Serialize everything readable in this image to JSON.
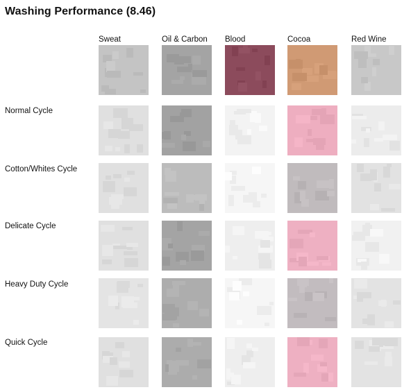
{
  "title": "Washing Performance (8.46)",
  "chart_data": {
    "type": "table",
    "title": "Washing Performance (8.46)",
    "columns": [
      "Sweat",
      "Oil & Carbon",
      "Blood",
      "Cocoa",
      "Red Wine"
    ],
    "rows": [
      "",
      "Normal Cycle",
      "Cotton/Whites Cycle",
      "Delicate Cycle",
      "Heavy Duty Cycle",
      "Quick Cycle"
    ],
    "swatch_colors": [
      [
        "#c4c4c4",
        "#a4a4a4",
        "#8c4b5c",
        "#d09a74",
        "#c8c8c8"
      ],
      [
        "#e0e0e0",
        "#a2a2a2",
        "#f3f3f3",
        "#eeaec0",
        "#ececec"
      ],
      [
        "#e0e0e0",
        "#bcbcbc",
        "#f6f6f6",
        "#c0bbbd",
        "#e2e2e2"
      ],
      [
        "#e0e0e0",
        "#a4a4a4",
        "#eeeeee",
        "#eeb0c2",
        "#f1f1f1"
      ],
      [
        "#e4e4e4",
        "#adadad",
        "#f6f6f6",
        "#c2bcbf",
        "#e3e3e3"
      ],
      [
        "#e0e0e0",
        "#acacac",
        "#eeeeee",
        "#eeb0c2",
        "#e3e3e3"
      ]
    ]
  }
}
